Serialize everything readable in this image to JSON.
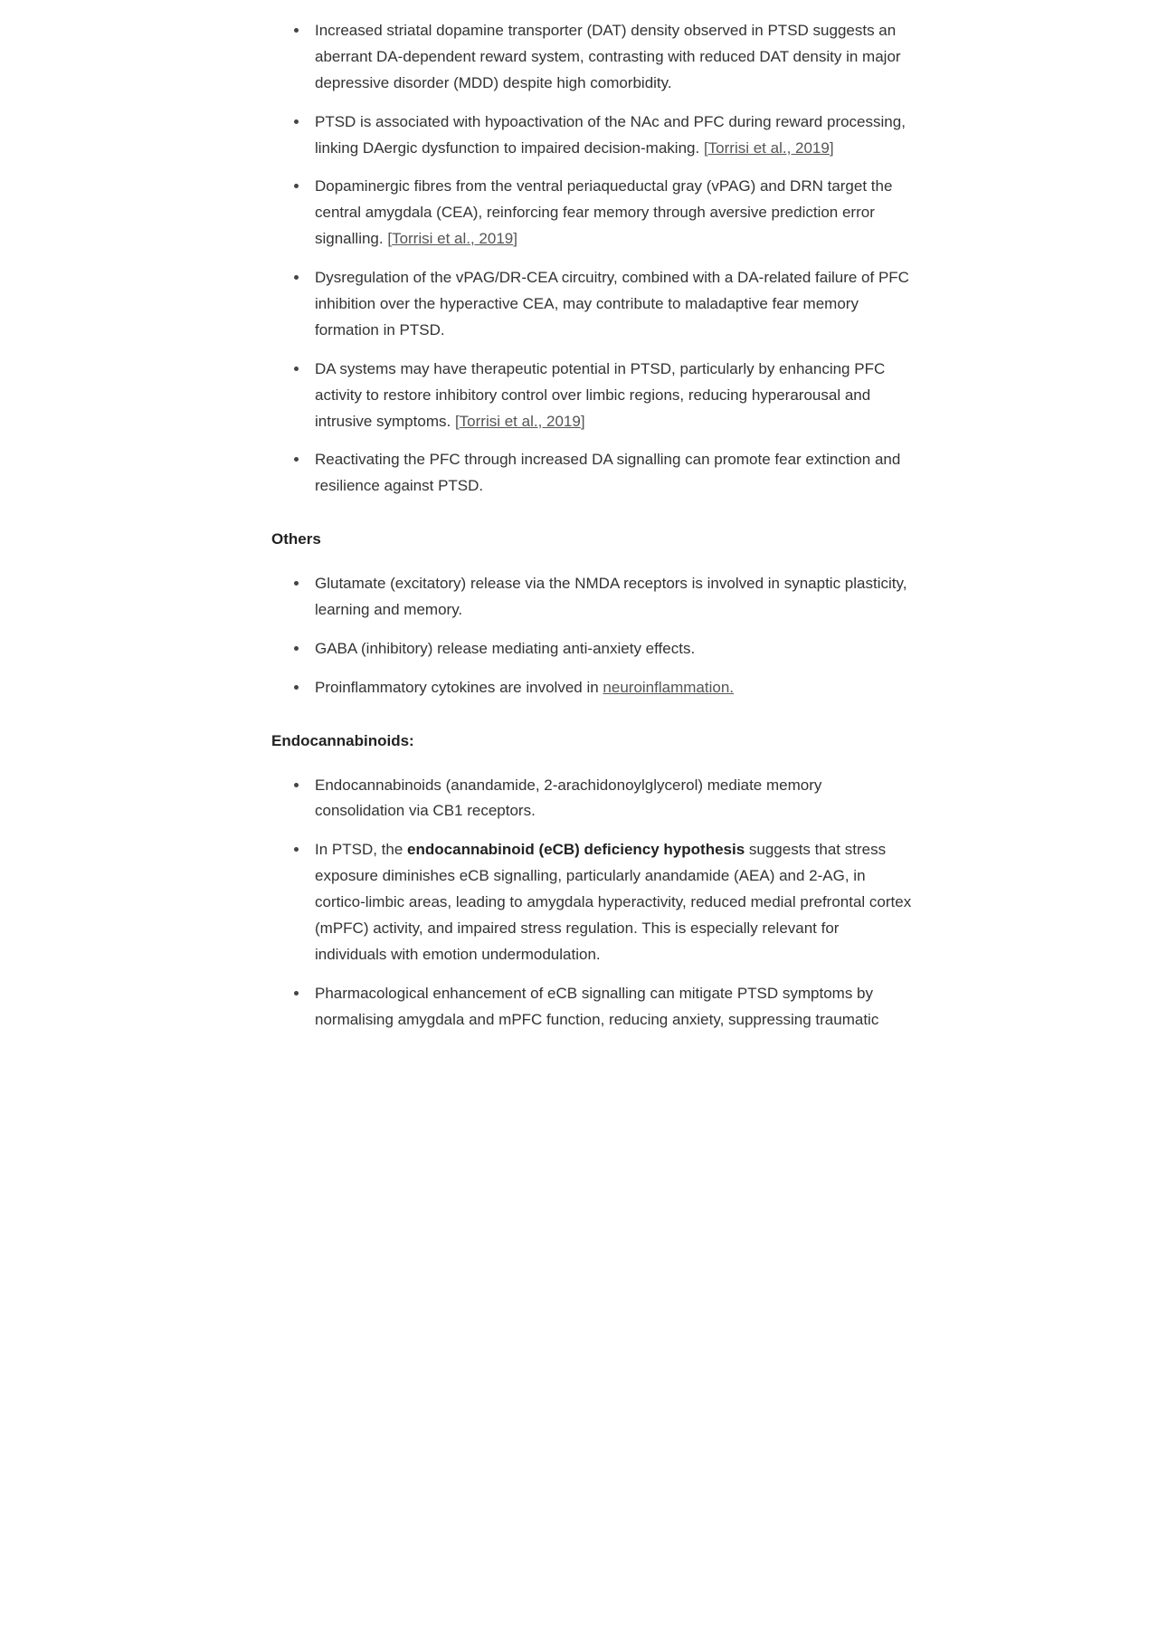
{
  "sections": {
    "dopamine": {
      "items": [
        {
          "text": "Increased striatal dopamine transporter (DAT) density observed in PTSD suggests an aberrant DA-dependent reward system, contrasting with reduced DAT density in major depressive disorder (MDD) despite high comorbidity."
        },
        {
          "text": "PTSD is associated with hypoactivation of the NAc and PFC during reward processing, linking DAergic dysfunction to impaired decision-making. ",
          "cite": "Torrisi et al., 2019"
        },
        {
          "text": "Dopaminergic fibres from the ventral periaqueductal gray (vPAG) and DRN target the central amygdala (CEA), reinforcing fear memory through aversive prediction error signalling. ",
          "cite": "Torrisi et al., 2019"
        },
        {
          "text": "Dysregulation of the vPAG/DR-CEA circuitry, combined with a DA-related failure of PFC inhibition over the hyperactive CEA, may contribute to maladaptive fear memory formation in PTSD."
        },
        {
          "text": "DA systems may have therapeutic potential in PTSD, particularly by enhancing PFC activity to restore inhibitory control over limbic regions, reducing hyperarousal and intrusive symptoms. ",
          "cite": "Torrisi et al., 2019"
        },
        {
          "text": "Reactivating the PFC through increased DA signalling can promote fear extinction and resilience against PTSD."
        }
      ]
    },
    "others": {
      "heading": "Others",
      "items": [
        {
          "text": "Glutamate (excitatory) release via the NMDA receptors is involved in synaptic plasticity, learning and memory."
        },
        {
          "text": "GABA (inhibitory) release mediating anti-anxiety effects."
        },
        {
          "text_prefix": "Proinflammatory cytokines are involved in ",
          "link": "neuroinflammation."
        }
      ]
    },
    "endocannabinoids": {
      "heading": "Endocannabinoids:",
      "items": [
        {
          "text": "Endocannabinoids (anandamide, 2-arachidonoylglycerol) mediate memory consolidation via CB1 receptors."
        },
        {
          "text_prefix": "In PTSD, the ",
          "bold": "endocannabinoid (eCB) deficiency hypothesis",
          "text_suffix": " suggests that stress exposure diminishes eCB signalling, particularly anandamide (AEA) and 2-AG, in cortico-limbic areas, leading to amygdala hyperactivity, reduced medial prefrontal cortex (mPFC) activity, and impaired stress regulation. This is especially relevant for individuals with emotion undermodulation."
        },
        {
          "text": "Pharmacological enhancement of eCB signalling can mitigate PTSD symptoms by normalising amygdala and mPFC function, reducing anxiety, suppressing traumatic"
        }
      ]
    }
  }
}
